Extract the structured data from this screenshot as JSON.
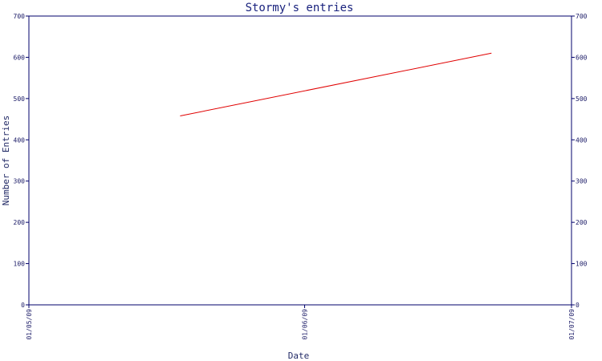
{
  "chart_data": {
    "type": "line",
    "title": "Stormy's entries",
    "xlabel": "Date",
    "ylabel": "Number of Entries",
    "x_ticks": [
      "01/05/09",
      "01/06/09",
      "01/07/09"
    ],
    "xlim": [
      "01/05/09",
      "01/07/09"
    ],
    "ylim": [
      0,
      700
    ],
    "y_ticks": [
      0,
      100,
      200,
      300,
      400,
      500,
      600,
      700
    ],
    "y_axis_right": true,
    "grid": false,
    "series": [
      {
        "color": "#e00000",
        "points": [
          {
            "x": "2009-05-18",
            "y": 458
          },
          {
            "x": "2009-06-22",
            "y": 610
          }
        ]
      }
    ]
  }
}
